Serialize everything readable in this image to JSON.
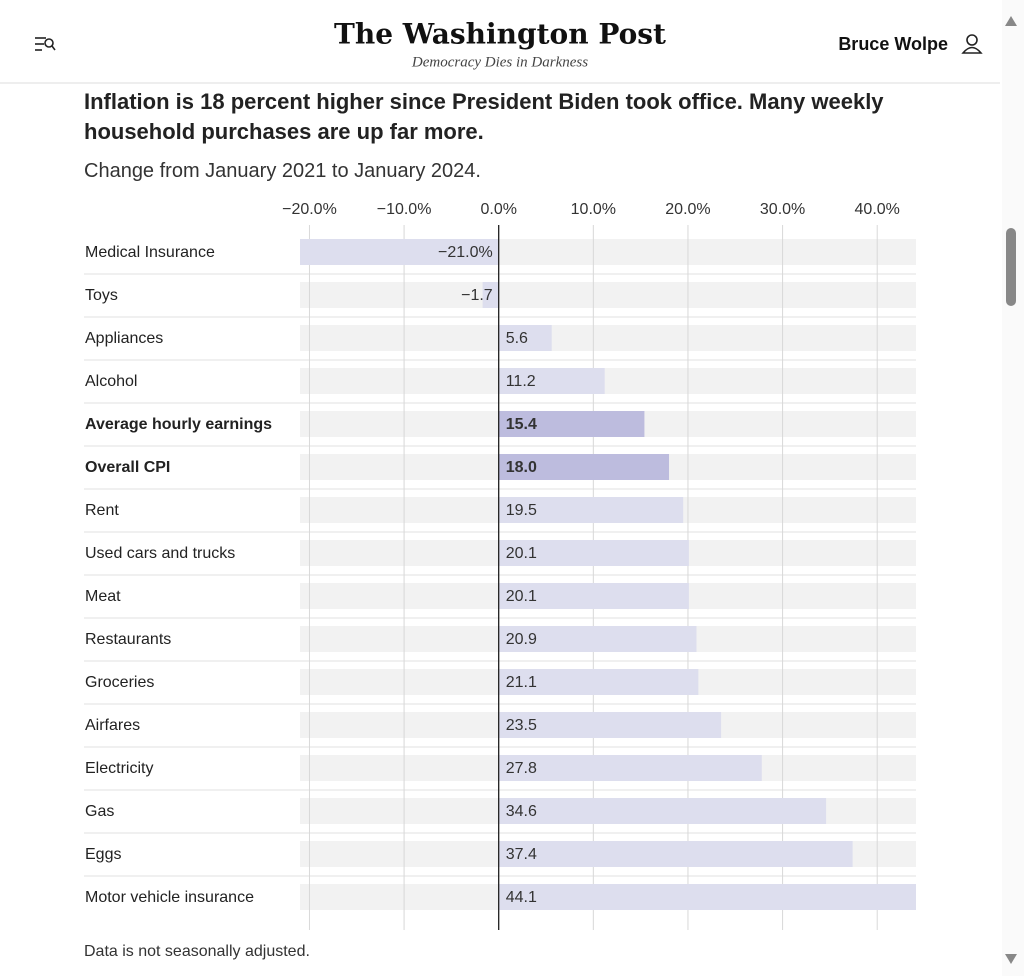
{
  "header": {
    "logo": "The Washington Post",
    "tagline": "Democracy Dies in Darkness",
    "user": "Bruce Wolpe"
  },
  "chart_data": {
    "type": "bar",
    "orientation": "horizontal",
    "title": "Inflation is 18 percent higher since President Biden took office. Many weekly household purchases are up far more.",
    "subtitle": "Change from January 2021 to January 2024.",
    "categories": [
      "Medical Insurance",
      "Toys",
      "Appliances",
      "Alcohol",
      "Average hourly earnings",
      "Overall CPI",
      "Rent",
      "Used cars and trucks",
      "Meat",
      "Restaurants",
      "Groceries",
      "Airfares",
      "Electricity",
      "Gas",
      "Eggs",
      "Motor vehicle insurance"
    ],
    "values": [
      -21.0,
      -1.7,
      5.6,
      11.2,
      15.4,
      18.0,
      19.5,
      20.1,
      20.1,
      20.9,
      21.1,
      23.5,
      27.8,
      34.6,
      37.4,
      44.1
    ],
    "value_labels": [
      "−21.0%",
      "−1.7",
      "5.6",
      "11.2",
      "15.4",
      "18.0",
      "19.5",
      "20.1",
      "20.1",
      "20.9",
      "21.1",
      "23.5",
      "27.8",
      "34.6",
      "37.4",
      "44.1"
    ],
    "emphasis": [
      false,
      false,
      false,
      false,
      true,
      true,
      false,
      false,
      false,
      false,
      false,
      false,
      false,
      false,
      false,
      false
    ],
    "color": "#dddeee",
    "highlight_color": "#bdbcde",
    "track_color": "#f2f2f2",
    "xlim": [
      -21,
      44.1
    ],
    "xticks": [
      {
        "value": -20,
        "label": "−20.0%"
      },
      {
        "value": -10,
        "label": "−10.0%"
      },
      {
        "value": 0,
        "label": "0.0%"
      },
      {
        "value": 10,
        "label": "10.0%"
      },
      {
        "value": 20,
        "label": "20.0%"
      },
      {
        "value": 30,
        "label": "30.0%"
      },
      {
        "value": 40,
        "label": "40.0%"
      }
    ],
    "grid": true,
    "note": "Data is not seasonally adjusted."
  }
}
